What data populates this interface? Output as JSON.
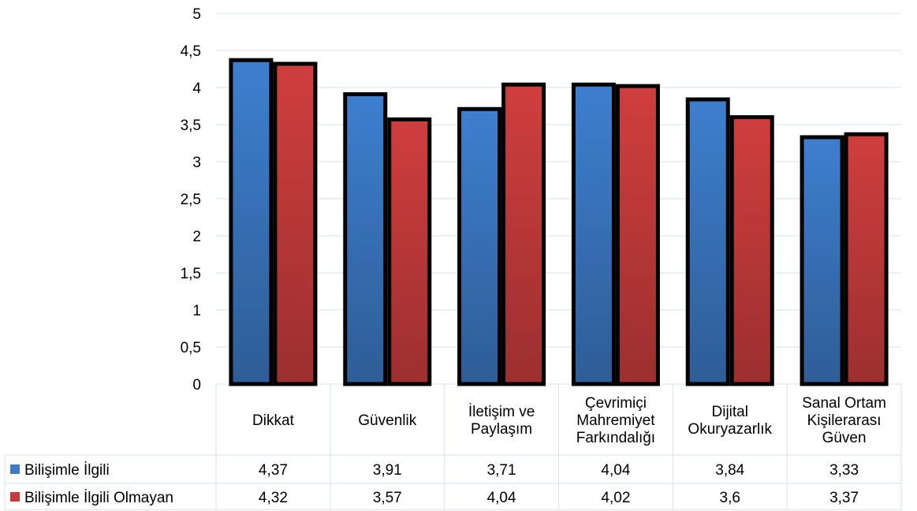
{
  "chart_data": {
    "type": "bar",
    "categories": [
      [
        "Dikkat"
      ],
      [
        "Güvenlik"
      ],
      [
        "İletişim ve",
        "Paylaşım"
      ],
      [
        "Çevrimiçi",
        "Mahremiyet",
        "Farkındalığı"
      ],
      [
        "Dijital",
        "Okuryazarlık"
      ],
      [
        "Sanal Ortam",
        "Kişilerarası",
        "Güven"
      ]
    ],
    "series": [
      {
        "name": "Bilişimle İlgili",
        "color": "#3C7BC8",
        "values": [
          4.37,
          3.91,
          3.71,
          4.04,
          3.84,
          3.33
        ],
        "labels": [
          "4,37",
          "3,91",
          "3,71",
          "4,04",
          "3,84",
          "3,33"
        ]
      },
      {
        "name": "Bilişimle İlgili Olmayan",
        "color": "#C93A3A",
        "values": [
          4.32,
          3.57,
          4.04,
          4.02,
          3.6,
          3.37
        ],
        "labels": [
          "4,32",
          "3,57",
          "4,04",
          "4,02",
          "3,6",
          "3,37"
        ]
      }
    ],
    "ylim": [
      0,
      5
    ],
    "yticks": [
      0,
      0.5,
      1,
      1.5,
      2,
      2.5,
      3,
      3.5,
      4,
      4.5,
      5
    ],
    "ytick_labels": [
      "0",
      "0,5",
      "1",
      "1,5",
      "2",
      "2,5",
      "3",
      "3,5",
      "4",
      "4,5",
      "5"
    ],
    "grid": true,
    "legend": "data-table"
  }
}
